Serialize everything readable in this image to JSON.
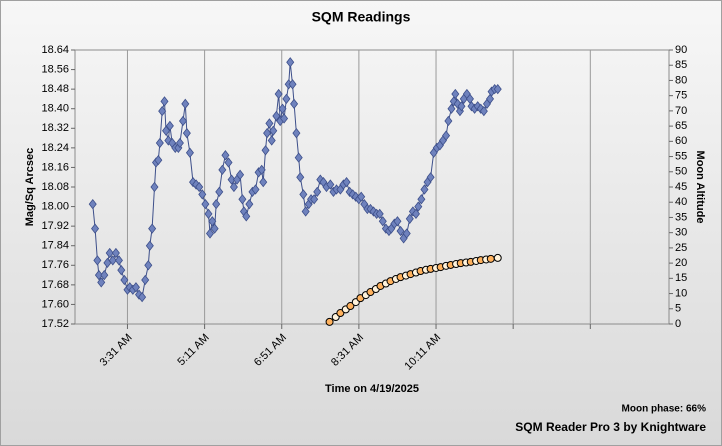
{
  "chart_data": {
    "type": "line",
    "title": "SQM Readings",
    "x_label": "Time on 4/19/2025",
    "y_label": "Mag/Sq Arcsec",
    "y2_label": "Moon Altitude",
    "annotations": [
      "Moon phase: 66%",
      "SQM Reader Pro 3 by Knightware"
    ],
    "grid": "x",
    "xlim": [
      143,
      913
    ],
    "xticks": [
      {
        "value": 211,
        "label": "3:31 AM"
      },
      {
        "value": 311,
        "label": "5:11 AM"
      },
      {
        "value": 411,
        "label": "6:51 AM"
      },
      {
        "value": 511,
        "label": "8:31 AM"
      },
      {
        "value": 611,
        "label": "10:11 AM"
      },
      {
        "value": 711,
        "label": null
      },
      {
        "value": 811,
        "label": null
      }
    ],
    "ylim": [
      17.52,
      18.64
    ],
    "yticks": [
      {
        "value": 17.52,
        "label": "17.52"
      },
      {
        "value": 17.6,
        "label": "17.60"
      },
      {
        "value": 17.68,
        "label": "17.68"
      },
      {
        "value": 17.76,
        "label": "17.76"
      },
      {
        "value": 17.84,
        "label": "17.84"
      },
      {
        "value": 17.92,
        "label": "17.92"
      },
      {
        "value": 18.0,
        "label": "18.00"
      },
      {
        "value": 18.08,
        "label": "18.08"
      },
      {
        "value": 18.16,
        "label": "18.16"
      },
      {
        "value": 18.24,
        "label": "18.24"
      },
      {
        "value": 18.32,
        "label": "18.32"
      },
      {
        "value": 18.4,
        "label": "18.40"
      },
      {
        "value": 18.48,
        "label": "18.48"
      },
      {
        "value": 18.56,
        "label": "18.56"
      },
      {
        "value": 18.64,
        "label": "18.64"
      }
    ],
    "y2lim": [
      0,
      90
    ],
    "y2ticks": [
      0,
      5,
      10,
      15,
      20,
      25,
      30,
      35,
      40,
      45,
      50,
      55,
      60,
      65,
      70,
      75,
      80,
      85,
      90
    ],
    "series": [
      {
        "marker": "diamond",
        "color": "#6f82bd",
        "line_color": "#3d4f8a",
        "x": [
          166,
          169,
          172,
          174,
          177,
          181,
          185,
          188,
          192,
          196,
          200,
          203,
          207,
          211,
          214,
          218,
          222,
          226,
          230,
          234,
          238,
          240,
          243,
          246,
          248,
          251,
          253,
          256,
          259,
          261,
          264,
          266,
          269,
          273,
          277,
          279,
          283,
          286,
          288,
          292,
          296,
          300,
          304,
          308,
          312,
          316,
          318,
          321,
          324,
          326,
          330,
          334,
          338,
          342,
          346,
          349,
          353,
          357,
          360,
          362,
          365,
          369,
          373,
          377,
          381,
          385,
          387,
          390,
          392,
          395,
          398,
          400,
          404,
          407,
          409,
          412,
          414,
          417,
          420,
          422,
          425,
          427,
          430,
          433,
          435,
          439,
          442,
          446,
          449,
          453,
          457,
          461,
          465,
          469,
          474,
          478,
          482,
          487,
          491,
          495,
          499,
          503,
          507,
          511,
          514,
          518,
          522,
          526,
          530,
          534,
          538,
          542,
          546,
          550,
          553,
          557,
          561,
          565,
          569,
          573,
          577,
          581,
          585,
          588,
          592,
          596,
          600,
          604,
          608,
          612,
          616,
          620,
          624,
          627,
          631,
          634,
          636,
          639,
          642,
          644,
          647,
          651,
          655,
          657,
          661,
          665,
          669,
          673,
          677,
          681,
          683,
          687,
          691
        ],
        "values": [
          18.01,
          17.91,
          17.78,
          17.72,
          17.69,
          17.72,
          17.77,
          17.81,
          17.78,
          17.81,
          17.78,
          17.74,
          17.7,
          17.66,
          17.67,
          17.66,
          17.67,
          17.64,
          17.63,
          17.7,
          17.76,
          17.84,
          17.91,
          18.08,
          18.18,
          18.19,
          18.26,
          18.39,
          18.43,
          18.31,
          18.27,
          18.33,
          18.26,
          18.24,
          18.24,
          18.26,
          18.35,
          18.42,
          18.3,
          18.22,
          18.1,
          18.09,
          18.08,
          18.05,
          18.01,
          17.97,
          17.89,
          17.94,
          17.91,
          18.01,
          18.06,
          18.15,
          18.21,
          18.18,
          18.11,
          18.08,
          18.11,
          18.13,
          18.03,
          17.98,
          17.96,
          18.01,
          18.06,
          18.07,
          18.14,
          18.15,
          18.1,
          18.23,
          18.3,
          18.34,
          18.27,
          18.31,
          18.37,
          18.46,
          18.35,
          18.4,
          18.36,
          18.44,
          18.5,
          18.59,
          18.5,
          18.42,
          18.3,
          18.2,
          18.12,
          18.05,
          17.98,
          18.01,
          18.03,
          18.03,
          18.06,
          18.11,
          18.1,
          18.08,
          18.09,
          18.06,
          18.07,
          18.07,
          18.09,
          18.1,
          18.06,
          18.05,
          18.04,
          18.03,
          18.04,
          18.01,
          17.99,
          17.99,
          17.98,
          17.97,
          17.97,
          17.94,
          17.91,
          17.9,
          17.91,
          17.93,
          17.94,
          17.9,
          17.87,
          17.89,
          17.95,
          17.98,
          17.97,
          18.0,
          18.03,
          18.07,
          18.1,
          18.12,
          18.22,
          18.24,
          18.25,
          18.27,
          18.29,
          18.35,
          18.4,
          18.43,
          18.46,
          18.42,
          18.39,
          18.41,
          18.44,
          18.46,
          18.44,
          18.41,
          18.4,
          18.41,
          18.4,
          18.39,
          18.42,
          18.44,
          18.47,
          18.48,
          18.48
        ]
      },
      {
        "marker": "circle",
        "color": "#ffb25e",
        "line_color": "#000000",
        "axis": "y2",
        "x": [
          473,
          481,
          487,
          494,
          500,
          507,
          513,
          520,
          526,
          533,
          539,
          546,
          552,
          559,
          565,
          572,
          578,
          585,
          591,
          598,
          604,
          611,
          617,
          624,
          630,
          637,
          643,
          650,
          656,
          663,
          669,
          676,
          682,
          691
        ],
        "values": [
          0.7,
          2.3,
          3.6,
          4.8,
          5.9,
          7.2,
          8.5,
          9.5,
          10.5,
          11.5,
          12.5,
          13.3,
          14.1,
          14.8,
          15.4,
          15.9,
          16.4,
          16.9,
          17.4,
          17.8,
          18.1,
          18.4,
          18.7,
          19.1,
          19.4,
          19.7,
          20.0,
          20.2,
          20.4,
          20.7,
          21.0,
          21.2,
          21.4,
          21.7
        ]
      }
    ]
  }
}
